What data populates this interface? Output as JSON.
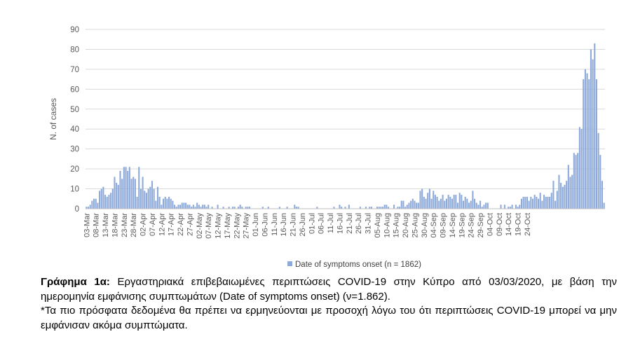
{
  "chart_data": {
    "type": "bar",
    "ylabel": "N. of cases",
    "xlabel": "",
    "ylim": [
      0,
      90
    ],
    "yticks": [
      0,
      10,
      20,
      30,
      40,
      50,
      60,
      70,
      80,
      90
    ],
    "grid": true,
    "legend_position": "bottom",
    "bar_color": "#8eaadb",
    "grid_color": "#d9d9d9",
    "axis_color": "#595959",
    "series": [
      {
        "name": "Date of symptoms onset (n = 1862)"
      }
    ],
    "date_start": "03-Mar",
    "tick_labels": [
      "03-Mar",
      "08-Mar",
      "13-Mar",
      "18-Mar",
      "23-Mar",
      "28-Mar",
      "02-Apr",
      "07-Apr",
      "12-Apr",
      "17-Apr",
      "22-Apr",
      "27-Apr",
      "02-May",
      "07-May",
      "12-May",
      "17-May",
      "22-May",
      "27-May",
      "01-Jun",
      "06-Jun",
      "11-Jun",
      "16-Jun",
      "21-Jun",
      "26-Jun",
      "01-Jul",
      "06-Jul",
      "11-Jul",
      "16-Jul",
      "21-Jul",
      "26-Jul",
      "31-Jul",
      "05-Aug",
      "10-Aug",
      "15-Aug",
      "20-Aug",
      "25-Aug",
      "30-Aug",
      "04-Sep",
      "09-Sep",
      "14-Sep",
      "19-Sep",
      "24-Sep",
      "29-Sep",
      "04-Oct",
      "09-Oct",
      "14-Oct",
      "19-Oct",
      "24-Oct"
    ],
    "values": [
      1,
      1,
      2,
      4,
      5,
      5,
      3,
      9,
      10,
      11,
      7,
      6,
      7,
      8,
      10,
      16,
      13,
      12,
      19,
      15,
      21,
      21,
      19,
      21,
      15,
      16,
      15,
      6,
      21,
      10,
      16,
      9,
      8,
      10,
      11,
      14,
      10,
      4,
      11,
      6,
      2,
      5,
      6,
      5,
      6,
      5,
      4,
      2,
      1,
      2,
      2,
      3,
      3,
      3,
      2,
      2,
      1,
      2,
      1,
      3,
      2,
      1,
      2,
      2,
      1,
      2,
      0,
      1,
      0,
      0,
      2,
      0,
      0,
      1,
      0,
      0,
      1,
      0,
      1,
      1,
      0,
      1,
      2,
      1,
      0,
      1,
      1,
      1,
      0,
      0,
      0,
      0,
      0,
      0,
      1,
      0,
      0,
      1,
      0,
      0,
      0,
      0,
      0,
      1,
      0,
      0,
      0,
      1,
      0,
      0,
      0,
      2,
      1,
      1,
      0,
      0,
      0,
      0,
      0,
      0,
      0,
      0,
      0,
      1,
      0,
      0,
      0,
      0,
      0,
      0,
      0,
      0,
      1,
      0,
      0,
      2,
      1,
      0,
      1,
      0,
      2,
      0,
      0,
      0,
      0,
      0,
      1,
      0,
      0,
      1,
      0,
      1,
      1,
      0,
      0,
      1,
      1,
      1,
      1,
      2,
      2,
      1,
      0,
      0,
      2,
      0,
      1,
      1,
      4,
      4,
      1,
      2,
      3,
      4,
      5,
      4,
      3,
      3,
      9,
      10,
      6,
      5,
      8,
      10,
      5,
      9,
      7,
      6,
      4,
      5,
      7,
      4,
      5,
      7,
      6,
      5,
      7,
      7,
      3,
      8,
      7,
      4,
      6,
      5,
      3,
      4,
      9,
      5,
      3,
      2,
      4,
      1,
      2,
      3,
      3,
      0,
      0,
      0,
      0,
      0,
      0,
      2,
      0,
      2,
      0,
      1,
      1,
      2,
      0,
      2,
      1,
      2,
      5,
      6,
      6,
      6,
      4,
      6,
      5,
      7,
      6,
      5,
      8,
      4,
      7,
      6,
      6,
      6,
      8,
      14,
      4,
      9,
      17,
      13,
      11,
      12,
      14,
      22,
      16,
      17,
      28,
      27,
      28,
      41,
      40,
      65,
      70,
      68,
      65,
      80,
      75,
      83,
      65,
      38,
      27,
      14,
      3
    ]
  },
  "caption": {
    "bold": "Γράφημα 1α:",
    "line1": " Εργαστηριακά επιβεβαιωμένες περιπτώσεις COVID-19 στην Κύπρο από 03/03/2020, με βάση την ημερομηνία εμφάνισης συμπτωμάτων (Date of symptoms onset) (ν=1.862).",
    "line2": "*Τα πιο πρόσφατα δεδομένα θα πρέπει να ερμηνεύονται με προσοχή λόγω του ότι περιπτώσεις COVID-19 μπορεί να μην εμφάνισαν ακόμα συμπτώματα."
  }
}
